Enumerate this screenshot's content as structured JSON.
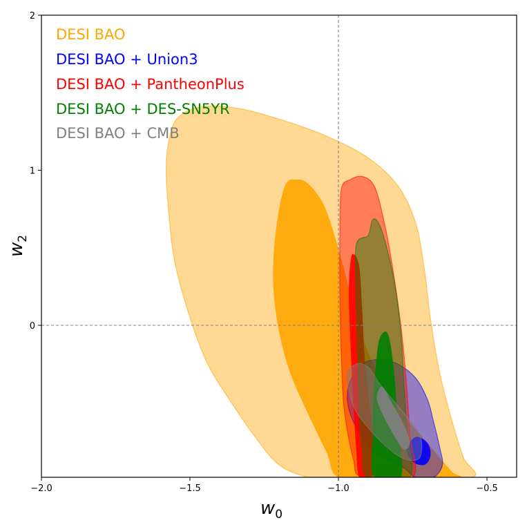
{
  "chart_data": {
    "type": "contour",
    "title": "",
    "xlabel": "w",
    "xlabel_sub": "0",
    "ylabel": "w",
    "ylabel_sub": "2",
    "xlim": [
      -2.0,
      -0.4
    ],
    "ylim": [
      -0.98,
      2.0
    ],
    "xticks": [
      -2.0,
      -1.5,
      -1.0,
      -0.5
    ],
    "xtick_labels": [
      "−2.0",
      "−1.5",
      "−1.0",
      "−0.5"
    ],
    "yticks": [
      0,
      1,
      2
    ],
    "ytick_labels": [
      "0",
      "1",
      "2"
    ],
    "reference_lines": {
      "w0": -1.0,
      "w2": 0.0
    },
    "legend_position": "top-left",
    "series": [
      {
        "name": "DESI BAO",
        "color": "#ffa500",
        "contours": {
          "outer": [
            [
              -1.57,
              1.2
            ],
            [
              -1.54,
              1.34
            ],
            [
              -1.46,
              1.41
            ],
            [
              -1.34,
              1.4
            ],
            [
              -1.2,
              1.33
            ],
            [
              -1.04,
              1.22
            ],
            [
              -0.9,
              1.08
            ],
            [
              -0.8,
              0.9
            ],
            [
              -0.74,
              0.66
            ],
            [
              -0.71,
              0.35
            ],
            [
              -0.69,
              0.04
            ],
            [
              -0.66,
              -0.3
            ],
            [
              -0.62,
              -0.6
            ],
            [
              -0.58,
              -0.85
            ],
            [
              -0.55,
              -0.98
            ],
            [
              -0.8,
              -0.98
            ],
            [
              -0.9,
              -0.98
            ],
            [
              -1.0,
              -0.98
            ],
            [
              -1.1,
              -0.98
            ],
            [
              -1.2,
              -0.9
            ],
            [
              -1.28,
              -0.72
            ],
            [
              -1.36,
              -0.5
            ],
            [
              -1.44,
              -0.25
            ],
            [
              -1.5,
              0.05
            ],
            [
              -1.55,
              0.4
            ],
            [
              -1.57,
              0.7
            ],
            [
              -1.58,
              1.0
            ]
          ],
          "inner": [
            [
              -1.18,
              0.9
            ],
            [
              -1.14,
              0.94
            ],
            [
              -1.1,
              0.91
            ],
            [
              -1.05,
              0.78
            ],
            [
              -1.01,
              0.56
            ],
            [
              -0.97,
              0.28
            ],
            [
              -0.93,
              -0.02
            ],
            [
              -0.87,
              -0.3
            ],
            [
              -0.79,
              -0.55
            ],
            [
              -0.7,
              -0.76
            ],
            [
              -0.62,
              -0.94
            ],
            [
              -0.6,
              -0.98
            ],
            [
              -0.85,
              -0.98
            ],
            [
              -1.0,
              -0.98
            ],
            [
              -1.04,
              -0.82
            ],
            [
              -1.1,
              -0.58
            ],
            [
              -1.16,
              -0.32
            ],
            [
              -1.2,
              -0.04
            ],
            [
              -1.22,
              0.28
            ],
            [
              -1.21,
              0.62
            ]
          ]
        }
      },
      {
        "name": "DESI BAO + Union3",
        "color": "#0000ff",
        "contours": {
          "outer": [
            [
              -0.92,
              -0.25
            ],
            [
              -0.86,
              -0.22
            ],
            [
              -0.8,
              -0.25
            ],
            [
              -0.74,
              -0.34
            ],
            [
              -0.7,
              -0.48
            ],
            [
              -0.68,
              -0.62
            ],
            [
              -0.66,
              -0.78
            ],
            [
              -0.65,
              -0.9
            ],
            [
              -0.68,
              -0.98
            ],
            [
              -0.74,
              -0.98
            ],
            [
              -0.78,
              -0.92
            ],
            [
              -0.85,
              -0.86
            ],
            [
              -0.9,
              -0.78
            ],
            [
              -0.95,
              -0.62
            ],
            [
              -0.97,
              -0.48
            ],
            [
              -0.96,
              -0.36
            ]
          ],
          "inner": [
            [
              -0.74,
              -0.72
            ],
            [
              -0.7,
              -0.76
            ],
            [
              -0.69,
              -0.84
            ],
            [
              -0.71,
              -0.9
            ],
            [
              -0.75,
              -0.88
            ],
            [
              -0.77,
              -0.8
            ]
          ]
        }
      },
      {
        "name": "DESI BAO + PantheonPlus",
        "color": "#ff0000",
        "contours": {
          "outer": [
            [
              -0.99,
              0.88
            ],
            [
              -0.96,
              0.94
            ],
            [
              -0.92,
              0.96
            ],
            [
              -0.88,
              0.9
            ],
            [
              -0.85,
              0.7
            ],
            [
              -0.82,
              0.4
            ],
            [
              -0.79,
              0.0
            ],
            [
              -0.77,
              -0.4
            ],
            [
              -0.76,
              -0.7
            ],
            [
              -0.75,
              -0.98
            ],
            [
              -0.92,
              -0.98
            ],
            [
              -0.95,
              -0.86
            ],
            [
              -0.98,
              -0.55
            ],
            [
              -0.99,
              -0.2
            ],
            [
              -0.995,
              0.2
            ],
            [
              -0.995,
              0.6
            ]
          ],
          "inner": [
            [
              -0.96,
              0.4
            ],
            [
              -0.95,
              0.46
            ],
            [
              -0.93,
              0.38
            ],
            [
              -0.92,
              0.1
            ],
            [
              -0.91,
              -0.25
            ],
            [
              -0.89,
              -0.6
            ],
            [
              -0.88,
              -0.9
            ],
            [
              -0.89,
              -0.98
            ],
            [
              -0.93,
              -0.98
            ],
            [
              -0.94,
              -0.8
            ],
            [
              -0.95,
              -0.5
            ],
            [
              -0.96,
              -0.1
            ],
            [
              -0.965,
              0.2
            ]
          ]
        }
      },
      {
        "name": "DESI BAO + DES-SN5YR",
        "color": "#008000",
        "contours": {
          "outer": [
            [
              -0.94,
              0.52
            ],
            [
              -0.9,
              0.58
            ],
            [
              -0.885,
              0.68
            ],
            [
              -0.865,
              0.66
            ],
            [
              -0.84,
              0.52
            ],
            [
              -0.81,
              0.26
            ],
            [
              -0.79,
              -0.04
            ],
            [
              -0.78,
              -0.36
            ],
            [
              -0.77,
              -0.66
            ],
            [
              -0.76,
              -0.98
            ],
            [
              -0.9,
              -0.98
            ],
            [
              -0.92,
              -0.8
            ],
            [
              -0.93,
              -0.52
            ],
            [
              -0.935,
              -0.18
            ],
            [
              -0.94,
              0.2
            ]
          ],
          "inner": [
            [
              -0.86,
              -0.08
            ],
            [
              -0.84,
              -0.04
            ],
            [
              -0.825,
              -0.12
            ],
            [
              -0.81,
              -0.36
            ],
            [
              -0.8,
              -0.66
            ],
            [
              -0.79,
              -0.98
            ],
            [
              -0.88,
              -0.98
            ],
            [
              -0.885,
              -0.7
            ],
            [
              -0.88,
              -0.4
            ],
            [
              -0.87,
              -0.18
            ]
          ]
        }
      },
      {
        "name": "DESI BAO + CMB",
        "color": "#808080",
        "contours": {
          "outer": [
            [
              -0.97,
              -0.32
            ],
            [
              -0.94,
              -0.25
            ],
            [
              -0.9,
              -0.27
            ],
            [
              -0.86,
              -0.38
            ],
            [
              -0.8,
              -0.52
            ],
            [
              -0.74,
              -0.66
            ],
            [
              -0.72,
              -0.76
            ],
            [
              -0.73,
              -0.86
            ],
            [
              -0.78,
              -0.86
            ],
            [
              -0.84,
              -0.78
            ],
            [
              -0.9,
              -0.66
            ],
            [
              -0.95,
              -0.52
            ]
          ],
          "inner": [
            [
              -0.865,
              -0.42
            ],
            [
              -0.85,
              -0.4
            ],
            [
              -0.82,
              -0.5
            ],
            [
              -0.78,
              -0.64
            ],
            [
              -0.76,
              -0.76
            ],
            [
              -0.78,
              -0.8
            ],
            [
              -0.81,
              -0.72
            ],
            [
              -0.85,
              -0.58
            ],
            [
              -0.87,
              -0.48
            ]
          ]
        }
      }
    ]
  }
}
